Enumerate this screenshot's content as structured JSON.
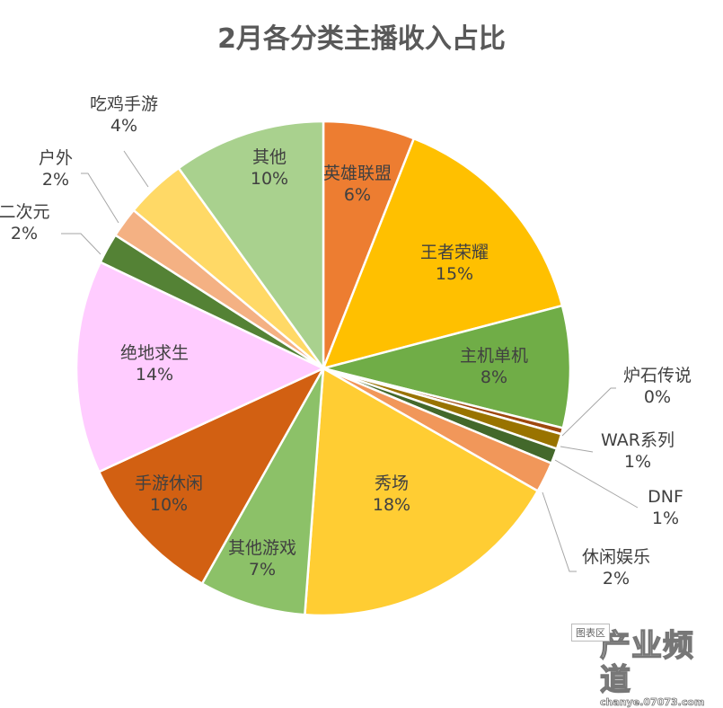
{
  "title": "2月各分类主播收入占比",
  "chart_data": {
    "type": "pie",
    "title": "2月各分类主播收入占比",
    "start_angle_deg": 0,
    "direction": "clockwise",
    "slices": [
      {
        "label": "英雄联盟",
        "value": 6,
        "display": "6%",
        "color": "#ED7D31"
      },
      {
        "label": "王者荣耀",
        "value": 15,
        "display": "15%",
        "color": "#FFC000"
      },
      {
        "label": "主机单机",
        "value": 8,
        "display": "8%",
        "color": "#70AD47"
      },
      {
        "label": "炉石传说",
        "value": 0.4,
        "display": "0%",
        "color": "#9E480E"
      },
      {
        "label": "WAR系列",
        "value": 1,
        "display": "1%",
        "color": "#997300"
      },
      {
        "label": "DNF",
        "value": 1,
        "display": "1%",
        "color": "#43682B"
      },
      {
        "label": "休闲娱乐",
        "value": 2,
        "display": "2%",
        "color": "#F1975A"
      },
      {
        "label": "秀场",
        "value": 18,
        "display": "18%",
        "color": "#FFCD33"
      },
      {
        "label": "其他游戏",
        "value": 7,
        "display": "7%",
        "color": "#8CC168"
      },
      {
        "label": "手游休闲",
        "value": 10,
        "display": "10%",
        "color": "#D26012"
      },
      {
        "label": "绝地求生",
        "value": 14,
        "display": "14%",
        "color": "#FFCCFF"
      },
      {
        "label": "二次元",
        "value": 2,
        "display": "2%",
        "color": "#548235"
      },
      {
        "label": "户外",
        "value": 2,
        "display": "2%",
        "color": "#F4B183"
      },
      {
        "label": "吃鸡手游",
        "value": 4,
        "display": "4%",
        "color": "#FFD966"
      },
      {
        "label": "其他",
        "value": 10,
        "display": "10%",
        "color": "#A9D18E"
      }
    ],
    "legend": "none",
    "data_labels": "category name and percentage"
  },
  "watermark": {
    "text": "产业频道",
    "url_text": "chanye.07073.com",
    "chart_area_tag": "图表区"
  }
}
